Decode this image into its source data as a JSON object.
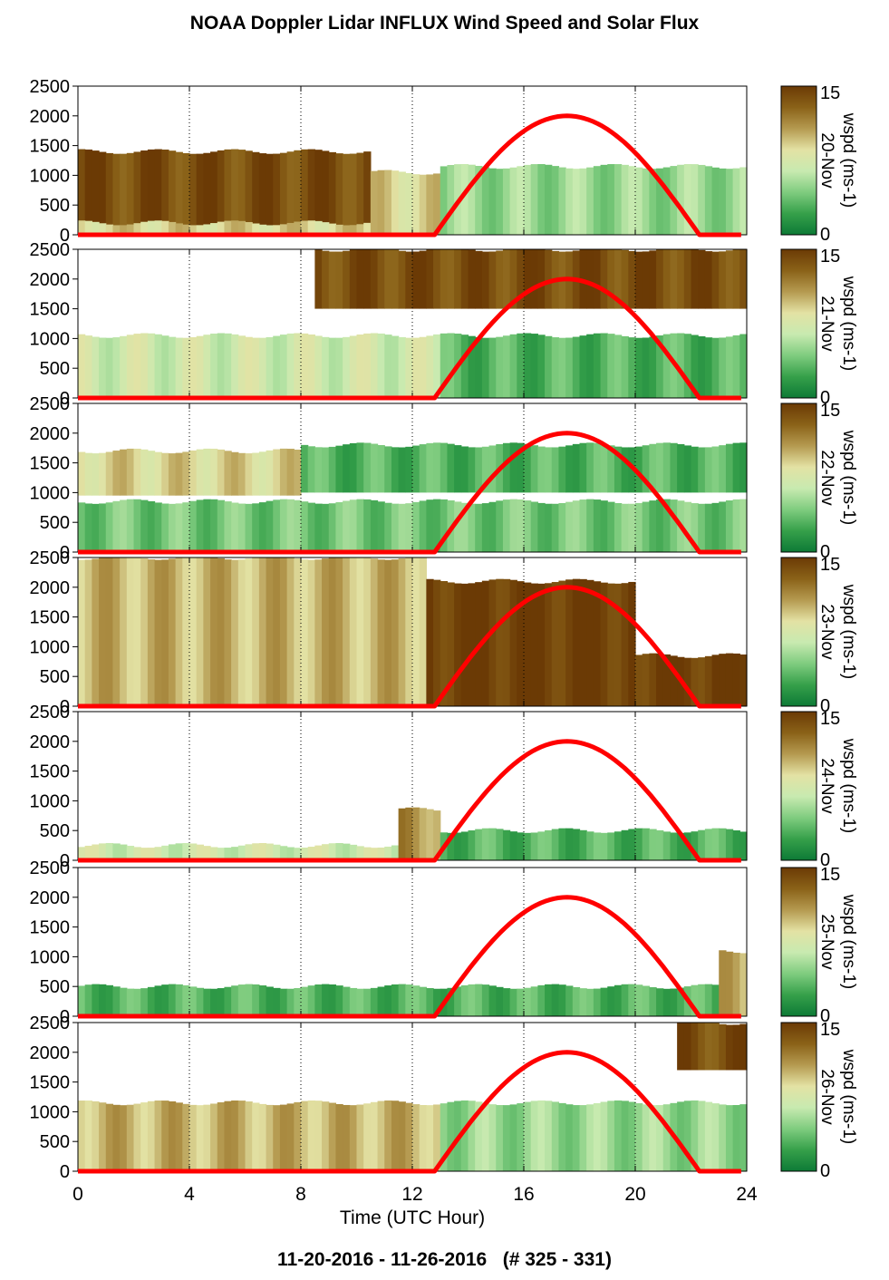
{
  "title": "NOAA Doppler Lidar INFLUX Wind Speed and Solar Flux",
  "xlabel": "Time (UTC Hour)",
  "footer": "11-20-2016 - 11-26-2016   (# 325 - 331)",
  "colorbar": {
    "label": "wspd (ms-1)",
    "range": [
      0,
      15
    ],
    "tick_labels": [
      "15",
      "0"
    ],
    "colors": [
      "#6b3a05",
      "#8a6218",
      "#b59a50",
      "#e3e2a4",
      "#c8eab0",
      "#7fcc7f",
      "#36a04a",
      "#0d7a36"
    ]
  },
  "chart_data": {
    "type": "heatmap",
    "xlim": [
      0,
      24
    ],
    "ylim": [
      0,
      2500
    ],
    "x_ticks": [
      "0",
      "4",
      "8",
      "12",
      "16",
      "20",
      "24"
    ],
    "y_ticks": [
      "0",
      "500",
      "1000",
      "1500",
      "2000",
      "2500"
    ],
    "grid": "dotted vertical lines at 4, 8, 12, 16, 20 h",
    "solar_flux_color": "#ff0000",
    "solar_flux_curve": {
      "sunrise_h": 12.8,
      "sunset_h": 22.3,
      "peak_h": 17.5,
      "peak_height_m": 2000
    },
    "panels": [
      {
        "date": "20-Nov",
        "layers": [
          {
            "x0": 0,
            "x1": 10.5,
            "y0": 0,
            "y1": 1400,
            "wspd": 14
          },
          {
            "x0": 0,
            "x1": 10.5,
            "y0": 0,
            "y1": 200,
            "wspd": 9
          },
          {
            "x0": 10.5,
            "x1": 13,
            "y0": 0,
            "y1": 1050,
            "wspd": 9
          },
          {
            "x0": 13,
            "x1": 24,
            "y0": 0,
            "y1": 1150,
            "wspd": 5
          }
        ]
      },
      {
        "date": "21-Nov",
        "layers": [
          {
            "x0": 0,
            "x1": 13,
            "y0": 0,
            "y1": 1050,
            "wspd": 7
          },
          {
            "x0": 13,
            "x1": 24,
            "y0": 0,
            "y1": 1050,
            "wspd": 3
          },
          {
            "x0": 8.5,
            "x1": 24,
            "y0": 1500,
            "y1": 2500,
            "wspd": 14
          }
        ]
      },
      {
        "date": "22-Nov",
        "layers": [
          {
            "x0": 0,
            "x1": 8,
            "y0": 950,
            "y1": 1700,
            "wspd": 9
          },
          {
            "x0": 8,
            "x1": 24,
            "y0": 1000,
            "y1": 1800,
            "wspd": 3
          },
          {
            "x0": 0,
            "x1": 24,
            "y0": 0,
            "y1": 850,
            "wspd": 4
          }
        ]
      },
      {
        "date": "23-Nov",
        "layers": [
          {
            "x0": 0,
            "x1": 12.5,
            "y0": 0,
            "y1": 2500,
            "wspd": 10
          },
          {
            "x0": 12.5,
            "x1": 20,
            "y0": 0,
            "y1": 2100,
            "wspd": 15
          },
          {
            "x0": 20,
            "x1": 24,
            "y0": 0,
            "y1": 850,
            "wspd": 15
          }
        ]
      },
      {
        "date": "24-Nov",
        "layers": [
          {
            "x0": 0,
            "x1": 11.5,
            "y0": 0,
            "y1": 250,
            "wspd": 7
          },
          {
            "x0": 11.5,
            "x1": 13,
            "y0": 0,
            "y1": 850,
            "wspd": 11
          },
          {
            "x0": 13,
            "x1": 24,
            "y0": 0,
            "y1": 500,
            "wspd": 3
          }
        ]
      },
      {
        "date": "25-Nov",
        "layers": [
          {
            "x0": 0,
            "x1": 23,
            "y0": 0,
            "y1": 500,
            "wspd": 3
          },
          {
            "x0": 23,
            "x1": 24,
            "y0": 0,
            "y1": 1100,
            "wspd": 10
          }
        ]
      },
      {
        "date": "26-Nov",
        "layers": [
          {
            "x0": 0,
            "x1": 13,
            "y0": 0,
            "y1": 1150,
            "wspd": 10
          },
          {
            "x0": 13,
            "x1": 24,
            "y0": 0,
            "y1": 1150,
            "wspd": 5
          },
          {
            "x0": 21.5,
            "x1": 24,
            "y0": 1700,
            "y1": 2500,
            "wspd": 14
          }
        ]
      }
    ]
  }
}
